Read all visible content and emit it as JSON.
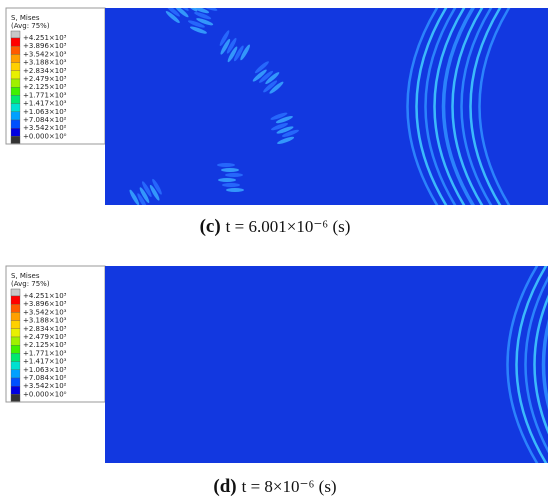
{
  "panels": [
    {
      "legend": {
        "title": "S, Mises",
        "subtitle": "(Avg: 75%)",
        "labels": [
          "+4.251×10³",
          "+3.896×10³",
          "+3.542×10³",
          "+3.188×10³",
          "+2.834×10³",
          "+2.479×10³",
          "+2.125×10³",
          "+1.771×10³",
          "+1.417×10³",
          "+1.063×10³",
          "+7.084×10²",
          "+3.542×10²",
          "+0.000×10⁰"
        ]
      },
      "caption": {
        "label": "(c)",
        "text": "t = 6.001×10⁻⁶ (s)"
      }
    },
    {
      "legend": {
        "title": "S, Mises",
        "subtitle": "(Avg: 75%)",
        "labels": [
          "+4.251×10³",
          "+3.896×10³",
          "+3.542×10³",
          "+3.188×10³",
          "+2.834×10³",
          "+2.479×10³",
          "+2.125×10³",
          "+1.771×10³",
          "+1.417×10³",
          "+1.063×10³",
          "+7.084×10²",
          "+3.542×10²",
          "+0.000×10⁰"
        ]
      },
      "caption": {
        "label": "(d)",
        "text": "t = 8×10⁻⁶ (s)"
      }
    }
  ]
}
